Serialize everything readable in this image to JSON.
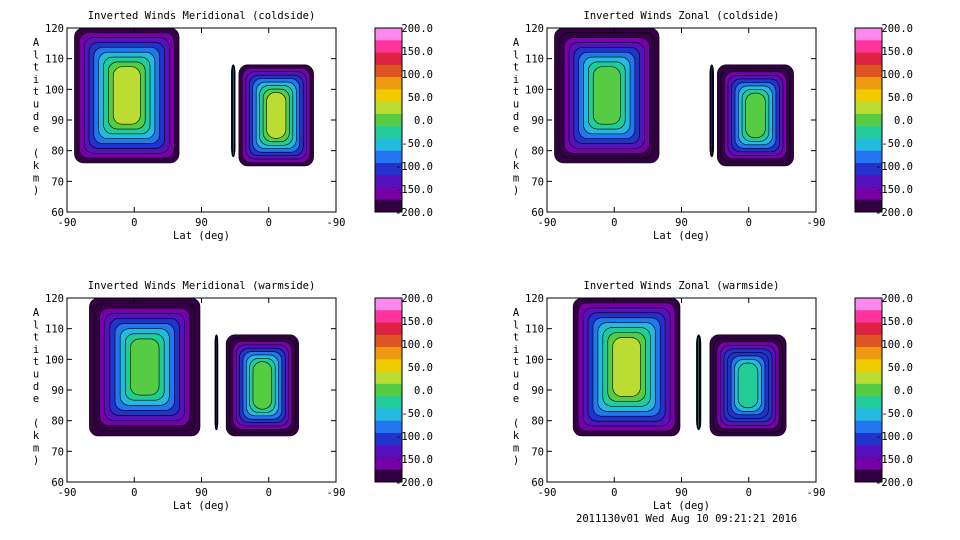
{
  "footer": "2011130v01 Wed Aug 10 09:21:21 2016",
  "colorbar": {
    "labels": [
      "200.0",
      "150.0",
      "100.0",
      "50.0",
      "0.0",
      "-50.0",
      "-100.0",
      "-150.0",
      "-200.0"
    ],
    "colors": [
      "#ff88ee",
      "#ff3399",
      "#dd2244",
      "#dd5522",
      "#ee9911",
      "#f2cc00",
      "#bbdd33",
      "#55cc44",
      "#22cc99",
      "#22bbdd",
      "#2277ee",
      "#2233cc",
      "#5511bb",
      "#7700aa",
      "#330044"
    ]
  },
  "chart_data": [
    {
      "type": "heatmap",
      "title": "Inverted Winds Meridional (coldside)",
      "xlabel": "Lat (deg)",
      "ylabel": "Altitude (km)",
      "xticks": [
        "-90",
        "0",
        "90",
        "0",
        "-90"
      ],
      "yticks": [
        "60",
        "70",
        "80",
        "90",
        "100",
        "110",
        "120"
      ],
      "ylim": [
        60,
        120
      ],
      "zlim": [
        -200,
        200
      ],
      "regions": [
        {
          "x": [
            -80,
            60
          ],
          "y": [
            76,
            120
          ],
          "mean": 30
        },
        {
          "x": [
            130,
            135
          ],
          "y": [
            78,
            108
          ],
          "mean": -60
        },
        {
          "x": [
            140,
            240
          ],
          "y": [
            75,
            108
          ],
          "mean": 25
        }
      ]
    },
    {
      "type": "heatmap",
      "title": "Inverted Winds Zonal (coldside)",
      "xlabel": "Lat (deg)",
      "ylabel": "Altitude (km)",
      "xticks": [
        "-90",
        "0",
        "90",
        "0",
        "-90"
      ],
      "yticks": [
        "60",
        "70",
        "80",
        "90",
        "100",
        "110",
        "120"
      ],
      "ylim": [
        60,
        120
      ],
      "zlim": [
        -200,
        200
      ],
      "regions": [
        {
          "x": [
            -80,
            60
          ],
          "y": [
            76,
            120
          ],
          "mean": 0
        },
        {
          "x": [
            128,
            133
          ],
          "y": [
            78,
            108
          ],
          "mean": -120
        },
        {
          "x": [
            138,
            240
          ],
          "y": [
            75,
            108
          ],
          "mean": 5
        }
      ]
    },
    {
      "type": "heatmap",
      "title": "Inverted Winds Meridional (warmside)",
      "xlabel": "Lat (deg)",
      "ylabel": "Altitude (km)",
      "xticks": [
        "-90",
        "0",
        "90",
        "0",
        "-90"
      ],
      "yticks": [
        "60",
        "70",
        "80",
        "90",
        "100",
        "110",
        "120"
      ],
      "ylim": [
        60,
        120
      ],
      "zlim": [
        -200,
        200
      ],
      "regions": [
        {
          "x": [
            -60,
            88
          ],
          "y": [
            75,
            120
          ],
          "mean": -10
        },
        {
          "x": [
            108,
            112
          ],
          "y": [
            77,
            108
          ],
          "mean": -110
        },
        {
          "x": [
            123,
            220
          ],
          "y": [
            75,
            108
          ],
          "mean": 10
        }
      ]
    },
    {
      "type": "heatmap",
      "title": "Inverted Winds Zonal (warmside)",
      "xlabel": "Lat (deg)",
      "ylabel": "Altitude (km)",
      "xticks": [
        "-90",
        "0",
        "90",
        "0",
        "-90"
      ],
      "yticks": [
        "60",
        "70",
        "80",
        "90",
        "100",
        "110",
        "120"
      ],
      "ylim": [
        60,
        120
      ],
      "zlim": [
        -200,
        200
      ],
      "regions": [
        {
          "x": [
            -55,
            88
          ],
          "y": [
            75,
            120
          ],
          "mean": 15
        },
        {
          "x": [
            110,
            116
          ],
          "y": [
            77,
            108
          ],
          "mean": -60
        },
        {
          "x": [
            128,
            230
          ],
          "y": [
            75,
            108
          ],
          "mean": -30
        }
      ]
    }
  ]
}
